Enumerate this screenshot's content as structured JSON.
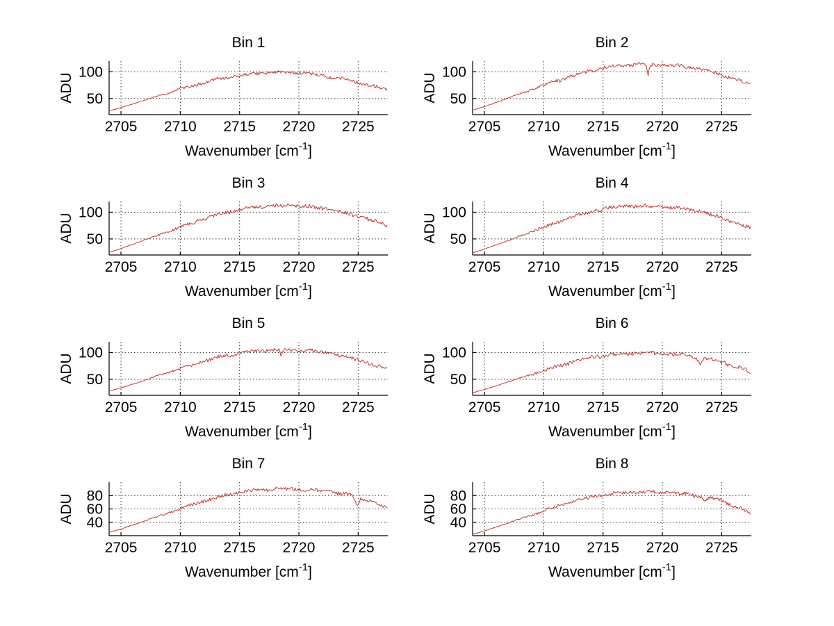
{
  "figure": {
    "background": "#ffffff",
    "line_color": "#c63529",
    "grid_color": "#2b2b2b",
    "axis_color": "#000000",
    "text_color": "#000000"
  },
  "chart_data": {
    "type": "line",
    "layout": "4 rows x 2 cols",
    "grid": "dotted",
    "legend": "none",
    "xlabel": "Wavenumber [cm⁻¹]",
    "xlabel_parts": {
      "base": "Wavenumber [cm",
      "sup": "-1",
      "end": "]"
    },
    "ylabel": "ADU",
    "xlim": [
      2704,
      2727.5
    ],
    "xticks": [
      2705,
      2710,
      2715,
      2720,
      2725
    ],
    "x_envelope": [
      2704,
      2705,
      2706,
      2707,
      2708,
      2709,
      2710,
      2711,
      2712,
      2713,
      2714,
      2715,
      2716,
      2717,
      2718,
      2719,
      2720,
      2721,
      2722,
      2723,
      2724,
      2725,
      2726,
      2727,
      2727.5
    ],
    "subplots": [
      {
        "title": "Bin 1",
        "ylim": [
          20,
          120
        ],
        "yticks": [
          50,
          100
        ],
        "y_envelope": [
          27,
          33,
          40,
          47,
          54,
          61,
          68,
          74,
          80,
          86,
          90,
          93,
          96,
          98,
          99,
          99,
          98,
          96,
          93,
          89,
          85,
          80,
          75,
          69,
          66
        ],
        "noise_amp": 3.0,
        "seed": 11,
        "spikes": []
      },
      {
        "title": "Bin 2",
        "ylim": [
          20,
          120
        ],
        "yticks": [
          50,
          100
        ],
        "y_envelope": [
          28,
          35,
          43,
          51,
          59,
          67,
          75,
          82,
          89,
          96,
          102,
          107,
          111,
          113,
          114,
          114,
          113,
          112,
          110,
          106,
          101,
          95,
          87,
          80,
          76
        ],
        "noise_amp": 3.2,
        "seed": 22,
        "spikes": [
          {
            "x": 2718.8,
            "depth": 20,
            "width": 0.12
          }
        ]
      },
      {
        "title": "Bin 3",
        "ylim": [
          20,
          120
        ],
        "yticks": [
          50,
          100
        ],
        "y_envelope": [
          25,
          32,
          40,
          48,
          56,
          64,
          72,
          80,
          87,
          94,
          100,
          105,
          109,
          111,
          112,
          112,
          112,
          110,
          107,
          103,
          98,
          93,
          86,
          79,
          74
        ],
        "noise_amp": 3.4,
        "seed": 33,
        "spikes": []
      },
      {
        "title": "Bin 4",
        "ylim": [
          20,
          120
        ],
        "yticks": [
          50,
          100
        ],
        "y_envelope": [
          24,
          31,
          39,
          47,
          55,
          64,
          72,
          80,
          88,
          95,
          101,
          106,
          109,
          111,
          111,
          111,
          110,
          109,
          106,
          102,
          96,
          89,
          81,
          74,
          71
        ],
        "noise_amp": 3.4,
        "seed": 44,
        "spikes": []
      },
      {
        "title": "Bin 5",
        "ylim": [
          20,
          120
        ],
        "yticks": [
          50,
          100
        ],
        "y_envelope": [
          28,
          34,
          41,
          48,
          56,
          63,
          70,
          77,
          84,
          90,
          95,
          99,
          102,
          104,
          105,
          105,
          104,
          103,
          101,
          97,
          92,
          86,
          79,
          72,
          68
        ],
        "noise_amp": 3.2,
        "seed": 55,
        "spikes": [
          {
            "x": 2718.5,
            "depth": 9,
            "width": 0.12
          }
        ]
      },
      {
        "title": "Bin 6",
        "ylim": [
          20,
          120
        ],
        "yticks": [
          50,
          100
        ],
        "y_envelope": [
          25,
          31,
          38,
          45,
          52,
          59,
          66,
          73,
          80,
          86,
          91,
          94,
          96,
          98,
          99,
          99,
          98,
          97,
          95,
          92,
          88,
          82,
          75,
          68,
          63
        ],
        "noise_amp": 3.4,
        "seed": 66,
        "spikes": [
          {
            "x": 2723.2,
            "depth": 12,
            "width": 0.25
          }
        ]
      },
      {
        "title": "Bin 7",
        "ylim": [
          20,
          100
        ],
        "yticks": [
          40,
          60,
          80
        ],
        "y_envelope": [
          25,
          30,
          36,
          42,
          48,
          54,
          60,
          66,
          72,
          77,
          81,
          85,
          87,
          89,
          90,
          90,
          89,
          88,
          87,
          85,
          82,
          78,
          72,
          64,
          59
        ],
        "noise_amp": 2.6,
        "seed": 77,
        "spikes": [
          {
            "x": 2724.9,
            "depth": 13,
            "width": 0.22
          }
        ]
      },
      {
        "title": "Bin 8",
        "ylim": [
          20,
          100
        ],
        "yticks": [
          40,
          60,
          80
        ],
        "y_envelope": [
          22,
          27,
          33,
          39,
          45,
          51,
          57,
          63,
          69,
          74,
          78,
          81,
          83,
          85,
          85,
          85,
          85,
          84,
          82,
          80,
          77,
          72,
          65,
          57,
          53
        ],
        "noise_amp": 2.4,
        "seed": 88,
        "spikes": [
          {
            "x": 2723.6,
            "depth": 8,
            "width": 0.25
          }
        ]
      }
    ]
  }
}
